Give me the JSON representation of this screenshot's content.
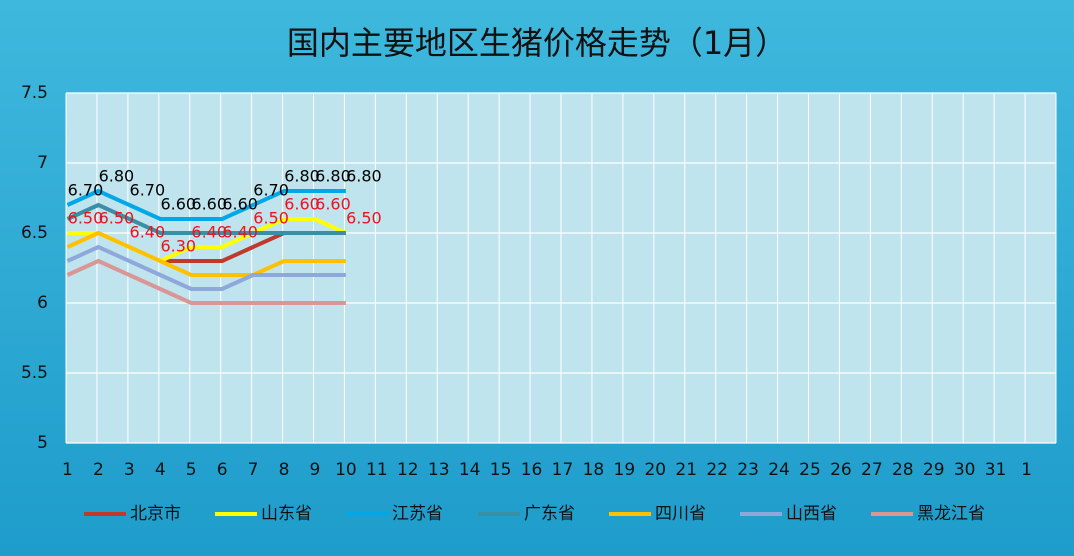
{
  "chart_data": {
    "type": "line",
    "title": "国内主要地区生猪价格走势（1月）",
    "categories": [
      "1",
      "2",
      "3",
      "4",
      "5",
      "6",
      "7",
      "8",
      "9",
      "10",
      "11",
      "12",
      "13",
      "14",
      "15",
      "16",
      "17",
      "18",
      "19",
      "20",
      "21",
      "22",
      "23",
      "24",
      "25",
      "26",
      "27",
      "28",
      "29",
      "30",
      "31",
      "1"
    ],
    "ylim": [
      5,
      7.5
    ],
    "yticks": [
      5,
      5.5,
      6,
      6.5,
      7,
      7.5
    ],
    "grid": true,
    "series": [
      {
        "name": "北京市",
        "color": "#c0392b",
        "values": [
          null,
          null,
          null,
          6.3,
          6.3,
          6.3,
          6.4,
          6.5,
          6.5,
          6.5,
          null,
          null,
          null,
          null,
          null,
          null,
          null,
          null,
          null,
          null,
          null,
          null,
          null,
          null,
          null,
          null,
          null,
          null,
          null,
          null,
          null,
          null
        ]
      },
      {
        "name": "山东省",
        "color": "#ffff00",
        "values": [
          6.5,
          6.5,
          6.4,
          6.3,
          6.4,
          6.4,
          6.5,
          6.6,
          6.6,
          6.5,
          null,
          null,
          null,
          null,
          null,
          null,
          null,
          null,
          null,
          null,
          null,
          null,
          null,
          null,
          null,
          null,
          null,
          null,
          null,
          null,
          null,
          null
        ],
        "value_labels": [
          "6.50",
          "6.50",
          "6.40",
          "6.30",
          "6.40",
          "6.40",
          "6.50",
          "6.60",
          "6.60",
          "6.50",
          null,
          null,
          null,
          null,
          null,
          null,
          null,
          null,
          null,
          null,
          null,
          null,
          null,
          null,
          null,
          null,
          null,
          null,
          null,
          null,
          null,
          null
        ],
        "label_color": "#e8141c"
      },
      {
        "name": "江苏省",
        "color": "#00a8e8",
        "values": [
          6.7,
          6.8,
          6.7,
          6.6,
          6.6,
          6.6,
          6.7,
          6.8,
          6.8,
          6.8,
          null,
          null,
          null,
          null,
          null,
          null,
          null,
          null,
          null,
          null,
          null,
          null,
          null,
          null,
          null,
          null,
          null,
          null,
          null,
          null,
          null,
          null
        ],
        "value_labels": [
          "6.70",
          "6.80",
          "6.70",
          "6.60",
          "6.60",
          "6.60",
          "6.70",
          "6.80",
          "6.80",
          "6.80",
          null,
          null,
          null,
          null,
          null,
          null,
          null,
          null,
          null,
          null,
          null,
          null,
          null,
          null,
          null,
          null,
          null,
          null,
          null,
          null,
          null,
          null
        ],
        "label_color": "#000000"
      },
      {
        "name": "广东省",
        "color": "#3a8ea6",
        "values": [
          6.6,
          6.7,
          6.6,
          6.5,
          6.5,
          6.5,
          6.5,
          6.5,
          6.5,
          6.5,
          null,
          null,
          null,
          null,
          null,
          null,
          null,
          null,
          null,
          null,
          null,
          null,
          null,
          null,
          null,
          null,
          null,
          null,
          null,
          null,
          null,
          null
        ]
      },
      {
        "name": "四川省",
        "color": "#ffc000",
        "values": [
          6.4,
          6.5,
          6.4,
          6.3,
          6.2,
          6.2,
          6.2,
          6.3,
          6.3,
          6.3,
          null,
          null,
          null,
          null,
          null,
          null,
          null,
          null,
          null,
          null,
          null,
          null,
          null,
          null,
          null,
          null,
          null,
          null,
          null,
          null,
          null,
          null
        ]
      },
      {
        "name": "山西省",
        "color": "#8fa8dc",
        "values": [
          6.3,
          6.4,
          6.3,
          6.2,
          6.1,
          6.1,
          6.2,
          6.2,
          6.2,
          6.2,
          null,
          null,
          null,
          null,
          null,
          null,
          null,
          null,
          null,
          null,
          null,
          null,
          null,
          null,
          null,
          null,
          null,
          null,
          null,
          null,
          null,
          null
        ]
      },
      {
        "name": "黑龙江省",
        "color": "#d99694",
        "values": [
          6.2,
          6.3,
          6.2,
          6.1,
          6.0,
          6.0,
          6.0,
          6.0,
          6.0,
          6.0,
          null,
          null,
          null,
          null,
          null,
          null,
          null,
          null,
          null,
          null,
          null,
          null,
          null,
          null,
          null,
          null,
          null,
          null,
          null,
          null,
          null,
          null
        ]
      }
    ]
  }
}
